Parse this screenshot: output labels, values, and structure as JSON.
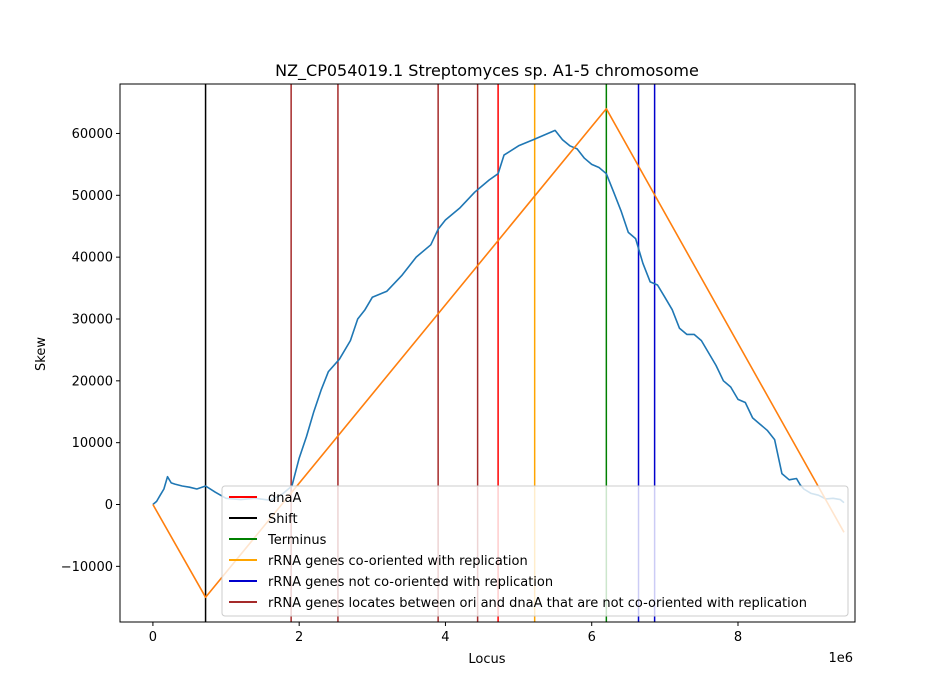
{
  "chart_data": {
    "type": "line",
    "title": "NZ_CP054019.1 Streptomyces sp. A1-5 chromosome",
    "xlabel": "Locus",
    "ylabel": "Skew",
    "x_offset_label": "1e6",
    "xlim": [
      -0.45,
      9.6
    ],
    "ylim": [
      -19000,
      68000
    ],
    "x_ticks": [
      {
        "value": 0,
        "label": "0"
      },
      {
        "value": 2,
        "label": "2"
      },
      {
        "value": 4,
        "label": "4"
      },
      {
        "value": 6,
        "label": "6"
      },
      {
        "value": 8,
        "label": "8"
      }
    ],
    "y_ticks": [
      {
        "value": -10000,
        "label": "−10000"
      },
      {
        "value": 0,
        "label": "0"
      },
      {
        "value": 10000,
        "label": "10000"
      },
      {
        "value": 20000,
        "label": "20000"
      },
      {
        "value": 30000,
        "label": "30000"
      },
      {
        "value": 40000,
        "label": "40000"
      },
      {
        "value": 50000,
        "label": "50000"
      },
      {
        "value": 60000,
        "label": "60000"
      }
    ],
    "legend_position": "lower-right",
    "series": [
      {
        "color": "#1f77b4",
        "x": [
          0,
          0.05,
          0.1,
          0.15,
          0.2,
          0.25,
          0.3,
          0.4,
          0.5,
          0.6,
          0.72,
          0.85,
          1.0,
          1.2,
          1.4,
          1.6,
          1.75,
          1.9,
          2.0,
          2.1,
          2.2,
          2.3,
          2.4,
          2.55,
          2.7,
          2.8,
          2.9,
          3.0,
          3.2,
          3.4,
          3.6,
          3.8,
          3.9,
          4.0,
          4.2,
          4.4,
          4.5,
          4.6,
          4.72,
          4.8,
          5.0,
          5.2,
          5.4,
          5.5,
          5.6,
          5.7,
          5.8,
          5.9,
          6.0,
          6.1,
          6.2,
          6.3,
          6.4,
          6.5,
          6.6,
          6.7,
          6.8,
          6.9,
          7.0,
          7.1,
          7.2,
          7.3,
          7.4,
          7.5,
          7.6,
          7.7,
          7.8,
          7.9,
          8.0,
          8.1,
          8.2,
          8.3,
          8.4,
          8.5,
          8.6,
          8.7,
          8.8,
          8.85,
          8.9,
          9.0,
          9.1,
          9.2,
          9.3,
          9.4,
          9.45
        ],
        "y": [
          0,
          500,
          1500,
          2500,
          4500,
          3500,
          3300,
          3000,
          2800,
          2500,
          3000,
          2000,
          1000,
          800,
          1000,
          700,
          1500,
          3000,
          7500,
          11000,
          15000,
          18500,
          21500,
          23500,
          26500,
          30000,
          31500,
          33500,
          34500,
          37000,
          40000,
          42000,
          44500,
          46000,
          48000,
          50500,
          51500,
          52500,
          53500,
          56500,
          58000,
          59000,
          60000,
          60500,
          59000,
          58000,
          57500,
          56000,
          55000,
          54500,
          53500,
          50500,
          47500,
          44000,
          43000,
          39000,
          36000,
          35500,
          33500,
          31500,
          28500,
          27500,
          27500,
          26500,
          24500,
          22500,
          20000,
          19000,
          17000,
          16500,
          14000,
          13000,
          12000,
          10500,
          5000,
          4000,
          4200,
          3200,
          2500,
          1800,
          1500,
          900,
          1000,
          800,
          300
        ]
      },
      {
        "color": "#ff7f0e",
        "x": [
          0,
          0.72,
          6.2,
          9.45
        ],
        "y": [
          0,
          -15000,
          64000,
          -4500
        ]
      }
    ],
    "vertical_lines": [
      {
        "x": 4.72,
        "color": "#ff0000",
        "legend": "dnaA"
      },
      {
        "x": 0.72,
        "color": "#000000",
        "legend": "Shift"
      },
      {
        "x": 6.2,
        "color": "#008000",
        "legend": "Terminus"
      },
      {
        "x": 5.22,
        "color": "#ffa500",
        "legend": "rRNA genes co-oriented with replication"
      },
      {
        "x": 6.64,
        "color": "#0000cd",
        "legend": "rRNA genes not co-oriented with replication"
      },
      {
        "x": 6.86,
        "color": "#0000cd",
        "legend": ""
      },
      {
        "x": 1.89,
        "color": "#a52a2a",
        "legend": "rRNA genes locates between ori and dnaA that are not co-oriented with replication"
      },
      {
        "x": 2.53,
        "color": "#a52a2a",
        "legend": ""
      },
      {
        "x": 3.9,
        "color": "#a52a2a",
        "legend": ""
      },
      {
        "x": 4.44,
        "color": "#a52a2a",
        "legend": ""
      }
    ],
    "legend": [
      {
        "label": "dnaA",
        "color": "#ff0000"
      },
      {
        "label": "Shift",
        "color": "#000000"
      },
      {
        "label": "Terminus",
        "color": "#008000"
      },
      {
        "label": "rRNA genes co-oriented with replication",
        "color": "#ffa500"
      },
      {
        "label": "rRNA genes not co-oriented with replication",
        "color": "#0000cd"
      },
      {
        "label": "rRNA genes locates between ori and dnaA that are not co-oriented with replication",
        "color": "#a52a2a"
      }
    ]
  }
}
